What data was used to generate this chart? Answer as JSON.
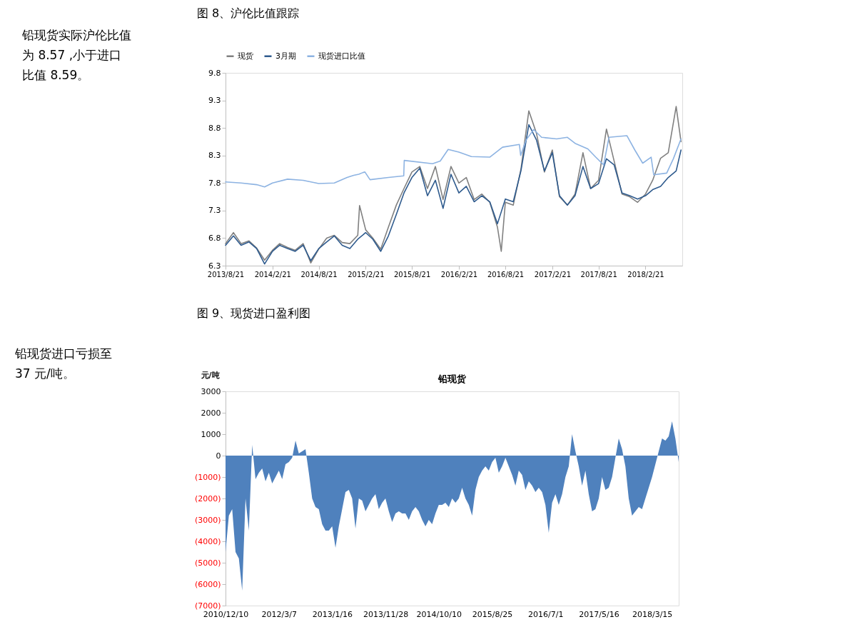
{
  "chart_data": [
    {
      "type": "line",
      "title": "图 8、沪伦比值跟踪",
      "annotations": [
        "铅现货实际沪伦比值为 8.57 ,小于进口比值 8.59。"
      ],
      "legend": "top",
      "grid": false,
      "xlim": [
        "2013-08-21",
        "2018-07-15"
      ],
      "xticks": [
        {
          "value": "2013-08-21",
          "label": "2013/8/21"
        },
        {
          "value": "2014-02-21",
          "label": "2014/2/21"
        },
        {
          "value": "2014-08-21",
          "label": "2014/8/21"
        },
        {
          "value": "2015-02-21",
          "label": "2015/2/21"
        },
        {
          "value": "2015-08-21",
          "label": "2015/8/21"
        },
        {
          "value": "2016-02-21",
          "label": "2016/2/21"
        },
        {
          "value": "2016-08-21",
          "label": "2016/8/21"
        },
        {
          "value": "2017-02-21",
          "label": "2017/2/21"
        },
        {
          "value": "2017-08-21",
          "label": "2017/8/21"
        },
        {
          "value": "2018-02-21",
          "label": "2018/2/21"
        }
      ],
      "ylim": [
        6.3,
        9.8
      ],
      "yticks": [
        6.3,
        6.8,
        7.3,
        7.8,
        8.3,
        8.8,
        9.3,
        9.8
      ],
      "series": [
        {
          "name": "现货",
          "color": "#808080",
          "x": [
            "2013-08-21",
            "2013-09-21",
            "2013-10-21",
            "2013-11-21",
            "2013-12-21",
            "2014-01-21",
            "2014-02-21",
            "2014-03-21",
            "2014-04-21",
            "2014-05-21",
            "2014-06-21",
            "2014-07-21",
            "2014-08-21",
            "2014-09-21",
            "2014-10-21",
            "2014-11-21",
            "2014-12-21",
            "2015-01-21",
            "2015-01-28",
            "2015-02-21",
            "2015-03-21",
            "2015-04-21",
            "2015-05-21",
            "2015-06-21",
            "2015-07-21",
            "2015-08-21",
            "2015-09-21",
            "2015-10-21",
            "2015-11-21",
            "2015-12-21",
            "2016-01-21",
            "2016-02-21",
            "2016-03-21",
            "2016-04-21",
            "2016-05-21",
            "2016-06-21",
            "2016-07-21",
            "2016-08-05",
            "2016-08-21",
            "2016-09-21",
            "2016-10-21",
            "2016-11-21",
            "2016-12-21",
            "2017-01-21",
            "2017-02-21",
            "2017-03-21",
            "2017-04-21",
            "2017-05-21",
            "2017-06-21",
            "2017-07-21",
            "2017-08-21",
            "2017-09-21",
            "2017-10-21",
            "2017-11-21",
            "2017-12-21",
            "2018-01-21",
            "2018-02-21",
            "2018-03-21",
            "2018-04-21",
            "2018-05-21",
            "2018-06-21",
            "2018-07-10"
          ],
          "values": [
            6.7,
            6.9,
            6.7,
            6.75,
            6.62,
            6.4,
            6.58,
            6.7,
            6.63,
            6.58,
            6.7,
            6.35,
            6.6,
            6.8,
            6.85,
            6.72,
            6.7,
            6.85,
            7.39,
            6.95,
            6.8,
            6.6,
            7.0,
            7.4,
            7.7,
            8.0,
            8.1,
            7.7,
            8.1,
            7.5,
            8.1,
            7.8,
            7.9,
            7.5,
            7.6,
            7.45,
            7.0,
            6.56,
            7.45,
            7.4,
            8.05,
            9.11,
            8.7,
            8.0,
            8.4,
            7.55,
            7.4,
            7.6,
            8.35,
            7.7,
            7.85,
            8.78,
            8.2,
            7.6,
            7.55,
            7.45,
            7.6,
            7.85,
            8.25,
            8.35,
            9.19,
            8.55
          ]
        },
        {
          "name": "3月期",
          "color": "#2f5b8e",
          "x": [
            "2013-08-21",
            "2013-09-21",
            "2013-10-21",
            "2013-11-21",
            "2013-12-21",
            "2014-01-21",
            "2014-02-21",
            "2014-03-21",
            "2014-04-21",
            "2014-05-21",
            "2014-06-21",
            "2014-07-21",
            "2014-08-21",
            "2014-09-21",
            "2014-10-21",
            "2014-11-21",
            "2014-12-21",
            "2015-01-21",
            "2015-02-21",
            "2015-03-21",
            "2015-04-21",
            "2015-05-21",
            "2015-06-21",
            "2015-07-21",
            "2015-08-21",
            "2015-09-21",
            "2015-10-21",
            "2015-11-21",
            "2015-12-21",
            "2016-01-21",
            "2016-02-21",
            "2016-03-21",
            "2016-04-21",
            "2016-05-21",
            "2016-06-21",
            "2016-07-21",
            "2016-08-21",
            "2016-09-21",
            "2016-10-21",
            "2016-11-21",
            "2016-12-21",
            "2017-01-21",
            "2017-02-21",
            "2017-03-21",
            "2017-04-21",
            "2017-05-21",
            "2017-06-21",
            "2017-07-21",
            "2017-08-21",
            "2017-09-21",
            "2017-10-21",
            "2017-11-21",
            "2017-12-21",
            "2018-01-21",
            "2018-02-21",
            "2018-03-21",
            "2018-04-21",
            "2018-05-21",
            "2018-06-21",
            "2018-07-10"
          ],
          "values": [
            6.67,
            6.84,
            6.67,
            6.73,
            6.61,
            6.33,
            6.56,
            6.67,
            6.61,
            6.56,
            6.67,
            6.39,
            6.61,
            6.73,
            6.84,
            6.67,
            6.61,
            6.78,
            6.9,
            6.78,
            6.56,
            6.84,
            7.23,
            7.62,
            7.9,
            8.07,
            7.57,
            7.85,
            7.34,
            7.96,
            7.62,
            7.74,
            7.46,
            7.57,
            7.46,
            7.06,
            7.51,
            7.46,
            8.02,
            8.86,
            8.58,
            8.02,
            8.35,
            7.57,
            7.4,
            7.57,
            8.1,
            7.7,
            7.79,
            8.24,
            8.13,
            7.62,
            7.57,
            7.51,
            7.57,
            7.68,
            7.74,
            7.9,
            8.02,
            8.4
          ]
        },
        {
          "name": "现货进口比值",
          "color": "#8db3e2",
          "x": [
            "2013-08-21",
            "2013-10-21",
            "2013-12-21",
            "2014-01-21",
            "2014-02-21",
            "2014-04-21",
            "2014-06-21",
            "2014-08-21",
            "2014-10-21",
            "2014-12-10",
            "2015-01-05",
            "2015-01-25",
            "2015-02-10",
            "2015-02-18",
            "2015-03-10",
            "2015-05-21",
            "2015-07-20",
            "2015-07-22",
            "2015-11-10",
            "2015-12-10",
            "2016-01-10",
            "2016-02-21",
            "2016-04-10",
            "2016-06-21",
            "2016-08-10",
            "2016-10-15",
            "2016-10-20",
            "2016-11-10",
            "2016-12-10",
            "2017-01-10",
            "2017-03-10",
            "2017-04-21",
            "2017-05-21",
            "2017-07-10",
            "2017-08-10",
            "2017-09-10",
            "2017-10-01",
            "2017-12-10",
            "2018-01-10",
            "2018-02-10",
            "2018-03-15",
            "2018-03-25",
            "2018-05-15",
            "2018-06-10",
            "2018-07-10"
          ],
          "values": [
            7.82,
            7.8,
            7.77,
            7.73,
            7.8,
            7.87,
            7.85,
            7.79,
            7.8,
            7.9,
            7.94,
            7.96,
            7.99,
            8.0,
            7.86,
            7.9,
            7.93,
            8.21,
            8.15,
            8.2,
            8.41,
            8.36,
            8.28,
            8.27,
            8.45,
            8.5,
            8.3,
            8.58,
            8.77,
            8.63,
            8.6,
            8.63,
            8.52,
            8.42,
            8.27,
            8.13,
            8.63,
            8.66,
            8.4,
            8.16,
            8.27,
            7.95,
            7.98,
            8.24,
            8.6
          ]
        }
      ]
    },
    {
      "type": "area",
      "title": "图 9、现货进口盈利图",
      "subtitle": "铅现货",
      "ylabel": "元/吨",
      "annotations": [
        "铅现货进口亏损至 37 元/吨。"
      ],
      "grid": false,
      "color": "#4f81bd",
      "ylim": [
        -7000,
        3000
      ],
      "yticks": [
        3000,
        2000,
        1000,
        0,
        {
          "value": -1000,
          "label": "(1000)"
        },
        {
          "value": -2000,
          "label": "(2000)"
        },
        {
          "value": -3000,
          "label": "(3000)"
        },
        {
          "value": -4000,
          "label": "(4000)"
        },
        {
          "value": -5000,
          "label": "(5000)"
        },
        {
          "value": -6000,
          "label": "(6000)"
        },
        {
          "value": -7000,
          "label": "(7000)"
        }
      ],
      "categories": [
        "2010/12/10",
        null,
        null,
        null,
        null,
        null,
        null,
        null,
        null,
        null,
        null,
        null,
        null,
        null,
        null,
        null,
        "2012/3/7",
        null,
        null,
        null,
        null,
        null,
        null,
        null,
        null,
        null,
        null,
        null,
        null,
        null,
        null,
        null,
        "2013/1/16",
        null,
        null,
        null,
        null,
        null,
        null,
        null,
        null,
        null,
        null,
        null,
        null,
        null,
        null,
        null,
        "2013/11/28",
        null,
        null,
        null,
        null,
        null,
        null,
        null,
        null,
        null,
        null,
        null,
        null,
        null,
        null,
        null,
        "2014/10/10",
        null,
        null,
        null,
        null,
        null,
        null,
        null,
        null,
        null,
        null,
        null,
        null,
        null,
        null,
        null,
        "2015/8/25",
        null,
        null,
        null,
        null,
        null,
        null,
        null,
        null,
        null,
        null,
        null,
        null,
        null,
        null,
        null,
        "2016/7/1",
        null,
        null,
        null,
        null,
        null,
        null,
        null,
        null,
        null,
        null,
        null,
        null,
        null,
        null,
        null,
        "2017/5/16",
        null,
        null,
        null,
        null,
        null,
        null,
        null,
        null,
        null,
        null,
        null,
        null,
        null,
        null,
        null,
        "2018/3/15",
        null,
        null,
        null,
        null,
        null,
        null,
        null,
        null
      ],
      "values": [
        -4500,
        -2800,
        -2500,
        -4500,
        -4800,
        -6300,
        -2000,
        -3500,
        500,
        -1100,
        -800,
        -600,
        -1200,
        -800,
        -1300,
        -1000,
        -700,
        -1100,
        -400,
        -300,
        -100,
        700,
        100,
        200,
        300,
        -800,
        -2000,
        -2400,
        -2500,
        -3200,
        -3500,
        -3500,
        -3300,
        -4300,
        -3300,
        -2500,
        -1700,
        -1600,
        -2000,
        -3400,
        -2000,
        -2100,
        -2600,
        -2300,
        -2000,
        -1800,
        -2500,
        -2200,
        -2000,
        -2600,
        -3100,
        -2700,
        -2600,
        -2700,
        -2700,
        -3000,
        -2600,
        -2400,
        -2600,
        -3000,
        -3300,
        -3000,
        -3200,
        -2700,
        -2300,
        -2300,
        -2200,
        -2400,
        -2000,
        -2200,
        -2000,
        -1500,
        -2000,
        -2300,
        -2800,
        -1600,
        -1000,
        -700,
        -500,
        -700,
        -300,
        -100,
        -800,
        -500,
        -100,
        -500,
        -900,
        -1400,
        -700,
        -900,
        -1600,
        -1200,
        -1400,
        -1700,
        -1500,
        -1700,
        -2300,
        -3600,
        -2200,
        -1800,
        -2300,
        -1800,
        -1000,
        -500,
        1000,
        200,
        -500,
        -1400,
        -700,
        -1800,
        -2600,
        -2500,
        -2000,
        -1000,
        -1600,
        -1500,
        -1000,
        -100,
        800,
        300,
        -500,
        -2000,
        -2800,
        -2600,
        -2400,
        -2500,
        -2000,
        -1500,
        -1000,
        -400,
        200,
        800,
        700,
        900,
        1600,
        800,
        -300
      ]
    }
  ]
}
